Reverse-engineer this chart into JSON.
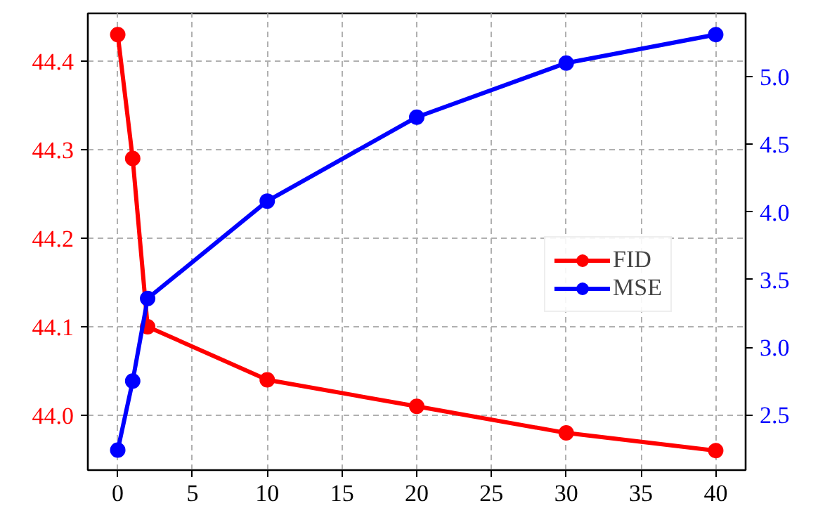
{
  "chart_data": {
    "type": "line",
    "x": [
      0,
      1,
      2,
      10,
      20,
      30,
      40
    ],
    "series": [
      {
        "name": "FID",
        "color": "#ff0000",
        "values": [
          44.43,
          44.29,
          44.1,
          44.04,
          44.01,
          43.98,
          43.96
        ]
      },
      {
        "name": "MSE",
        "color": "#0000ff",
        "axis": "y2",
        "values": [
          2.24,
          2.75,
          3.36,
          4.08,
          4.7,
          5.1,
          5.31
        ]
      }
    ],
    "xlim": [
      -2,
      42
    ],
    "xticks": [
      0,
      5,
      10,
      15,
      20,
      25,
      30,
      35,
      40
    ],
    "ylim": [
      43.938,
      44.454
    ],
    "yticks": [
      {
        "value": 44.0,
        "label": "44.0"
      },
      {
        "value": 44.1,
        "label": "44.1"
      },
      {
        "value": 44.2,
        "label": "44.2"
      },
      {
        "value": 44.3,
        "label": "44.3"
      },
      {
        "value": 44.4,
        "label": "44.4"
      }
    ],
    "y2lim": [
      2.092,
      5.467
    ],
    "y2ticks": [
      {
        "value": 2.5,
        "label": "2.5"
      },
      {
        "value": 3.0,
        "label": "3.0"
      },
      {
        "value": 3.5,
        "label": "3.5"
      },
      {
        "value": 4.0,
        "label": "4.0"
      },
      {
        "value": 4.5,
        "label": "4.5"
      },
      {
        "value": 5.0,
        "label": "5.0"
      }
    ],
    "grid": true,
    "legend": "right",
    "marker": "circle",
    "line_style": "solid"
  }
}
